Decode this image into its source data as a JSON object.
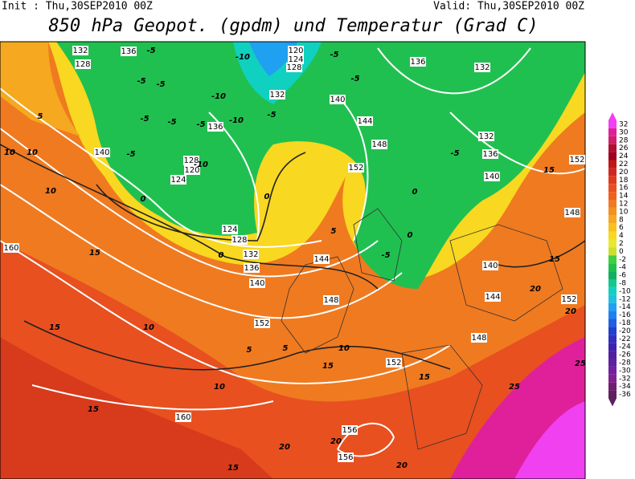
{
  "header": {
    "init": "Init : Thu,30SEP2010 00Z",
    "valid": "Valid: Thu,30SEP2010 00Z",
    "title": "850 hPa Geopot. (gpdm) und Temperatur (Grad C)"
  },
  "colorbar": {
    "levels": [
      32,
      30,
      28,
      26,
      24,
      22,
      20,
      18,
      16,
      14,
      12,
      10,
      8,
      6,
      4,
      2,
      0,
      -2,
      -4,
      -6,
      -8,
      -10,
      -12,
      -14,
      -16,
      -18,
      -20,
      -22,
      -24,
      -26,
      -28,
      -30,
      -32,
      -34,
      -36
    ],
    "colors": [
      "#f040f0",
      "#e0209a",
      "#d0206a",
      "#b01030",
      "#a00020",
      "#c01818",
      "#d02820",
      "#e03a1c",
      "#e85020",
      "#f06020",
      "#f07a20",
      "#f39020",
      "#f5a820",
      "#f8c020",
      "#f8d820",
      "#e8e830",
      "#c8e030",
      "#40d040",
      "#20c050",
      "#10b060",
      "#10c890",
      "#10d0c0",
      "#20c0e0",
      "#20a0f0",
      "#2080f0",
      "#2060e0",
      "#2040d0",
      "#3030c0",
      "#4020b0",
      "#5020a0",
      "#6020a0",
      "#7020a0",
      "#802090",
      "#702070",
      "#602060"
    ]
  },
  "contour_labels": {
    "geopotential": [
      "132",
      "128",
      "136",
      "120",
      "124",
      "128",
      "132",
      "136",
      "132",
      "140",
      "144",
      "148",
      "152",
      "140",
      "136",
      "128",
      "124",
      "120",
      "124",
      "128",
      "132",
      "136",
      "140",
      "144",
      "148",
      "152",
      "152",
      "148",
      "144",
      "140",
      "140",
      "136",
      "132",
      "148",
      "152",
      "160",
      "160",
      "156",
      "156",
      "152"
    ],
    "temperature": [
      "-5",
      "-10",
      "-5",
      "-5",
      "-5",
      "-5",
      "-5",
      "-5",
      "-5",
      "-5",
      "-10",
      "-5",
      "-10",
      "-10",
      "0",
      "0",
      "0",
      "5",
      "5",
      "0",
      "0",
      "-5",
      "5",
      "10",
      "10",
      "10",
      "15",
      "15",
      "10",
      "10",
      "15",
      "15",
      "10",
      "5",
      "15",
      "15",
      "15",
      "20",
      "20",
      "25",
      "25",
      "20",
      "20",
      "20",
      "15",
      "-5"
    ]
  }
}
